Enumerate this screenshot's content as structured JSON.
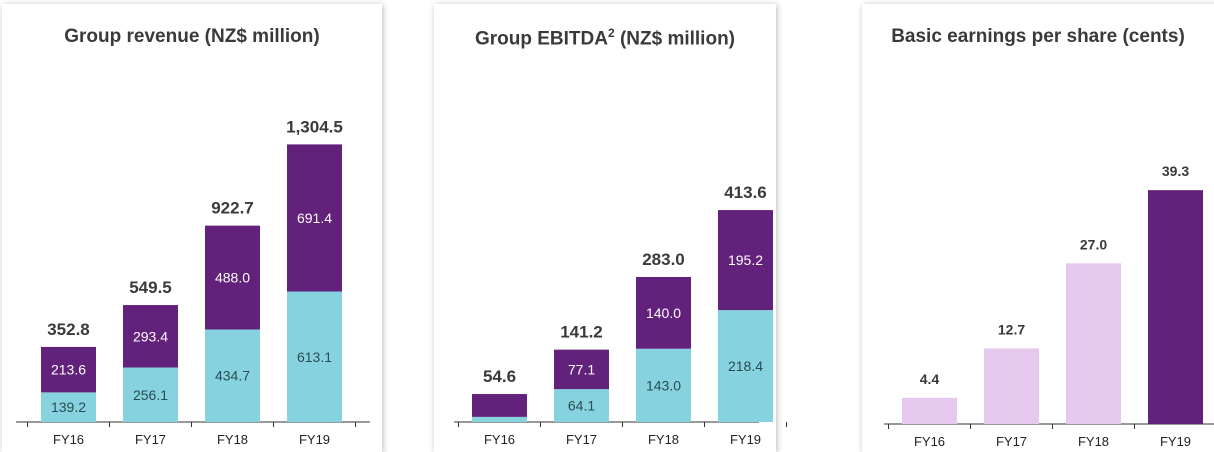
{
  "colors": {
    "base": "#86d2de",
    "top": "#62217a",
    "eps_light": "#e6c8ef",
    "eps_dark": "#62217a",
    "total_text": "#3a3a3a",
    "axis": "#333333"
  },
  "chart_data": [
    {
      "type": "bar",
      "stacked": true,
      "title": "Group revenue (NZ$ million)",
      "categories": [
        "FY16",
        "FY17",
        "FY18",
        "FY19"
      ],
      "series": [
        {
          "values": [
            139.2,
            256.1,
            434.7,
            613.1
          ],
          "labels": [
            "139.2",
            "256.1",
            "434.7",
            "613.1"
          ]
        },
        {
          "values": [
            213.6,
            293.4,
            488.0,
            691.4
          ],
          "labels": [
            "213.6",
            "293.4",
            "488.0",
            "691.4"
          ]
        }
      ],
      "totals": [
        352.8,
        549.5,
        922.7,
        1304.5
      ],
      "total_labels": [
        "352.8",
        "549.5",
        "922.7",
        "1,304.5"
      ],
      "xlabel": "",
      "ylabel": "",
      "grid": false
    },
    {
      "type": "bar",
      "stacked": true,
      "title": "Group EBITDA",
      "title_sup": "2",
      "title_suffix": " (NZ$ million)",
      "categories": [
        "FY16",
        "FY17",
        "FY18",
        "FY19"
      ],
      "series": [
        {
          "values": [
            10.0,
            64.1,
            143.0,
            218.4
          ],
          "labels": [
            "",
            "64.1",
            "143.0",
            "218.4"
          ]
        },
        {
          "values": [
            44.6,
            77.1,
            140.0,
            195.2
          ],
          "labels": [
            "",
            "77.1",
            "140.0",
            "195.2"
          ]
        }
      ],
      "totals": [
        54.6,
        141.2,
        283.0,
        413.6
      ],
      "total_labels": [
        "54.6",
        "141.2",
        "283.0",
        "413.6"
      ],
      "xlabel": "",
      "ylabel": "",
      "grid": false
    },
    {
      "type": "bar",
      "stacked": false,
      "title": "Basic earnings per share (cents)",
      "categories": [
        "FY16",
        "FY17",
        "FY18",
        "FY19"
      ],
      "values": [
        4.4,
        12.7,
        27.0,
        39.3
      ],
      "value_labels": [
        "4.4",
        "12.7",
        "27.0",
        "39.3"
      ],
      "xlabel": "",
      "ylabel": "",
      "grid": false
    }
  ]
}
